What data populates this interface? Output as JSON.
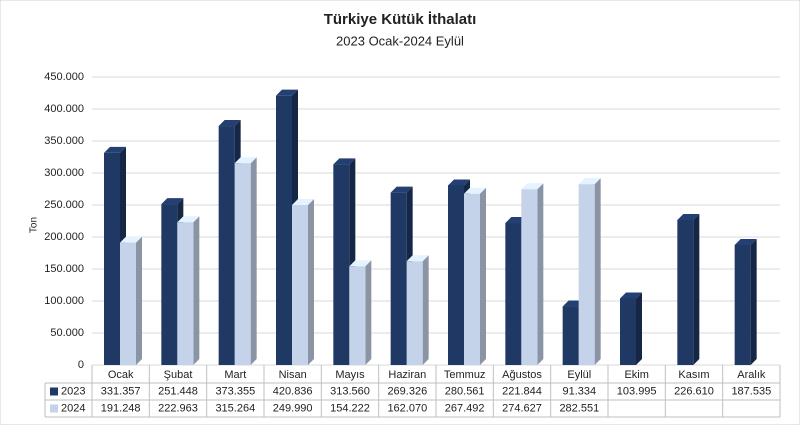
{
  "chart_data": {
    "type": "bar3d",
    "title": "Türkiye Kütük İthalatı",
    "subtitle": "2023 Ocak-2024 Eylül",
    "y_label": "Ton",
    "categories": [
      "Ocak",
      "Şubat",
      "Mart",
      "Nisan",
      "Mayıs",
      "Haziran",
      "Temmuz",
      "Ağustos",
      "Eylül",
      "Ekim",
      "Kasım",
      "Aralık"
    ],
    "series": [
      {
        "name": "2023",
        "color": "#1f3864",
        "values": [
          331357,
          251448,
          373355,
          420836,
          313560,
          269326,
          280561,
          221844,
          91334,
          103995,
          226610,
          187535
        ],
        "value_labels": [
          "331.357",
          "251.448",
          "373.355",
          "420.836",
          "313.560",
          "269.326",
          "280.561",
          "221.844",
          "91.334",
          "103.995",
          "226.610",
          "187.535"
        ]
      },
      {
        "name": "2024",
        "color": "#c5d3ea",
        "values": [
          191248,
          222963,
          315264,
          249990,
          154222,
          162070,
          267492,
          274627,
          282551,
          null,
          null,
          null
        ],
        "value_labels": [
          "191.248",
          "222.963",
          "315.264",
          "249.990",
          "154.222",
          "162.070",
          "267.492",
          "274.627",
          "282.551",
          null,
          null,
          null
        ]
      }
    ],
    "ylim": [
      0,
      450000
    ],
    "yticks": [
      {
        "value": 0,
        "label": "0"
      },
      {
        "value": 50000,
        "label": "50.000"
      },
      {
        "value": 100000,
        "label": "100.000"
      },
      {
        "value": 150000,
        "label": "150.000"
      },
      {
        "value": 200000,
        "label": "200.000"
      },
      {
        "value": 250000,
        "label": "250.000"
      },
      {
        "value": 300000,
        "label": "300.000"
      },
      {
        "value": 350000,
        "label": "350.000"
      },
      {
        "value": 400000,
        "label": "400.000"
      },
      {
        "value": 450000,
        "label": "450.000"
      }
    ],
    "grid": true
  }
}
